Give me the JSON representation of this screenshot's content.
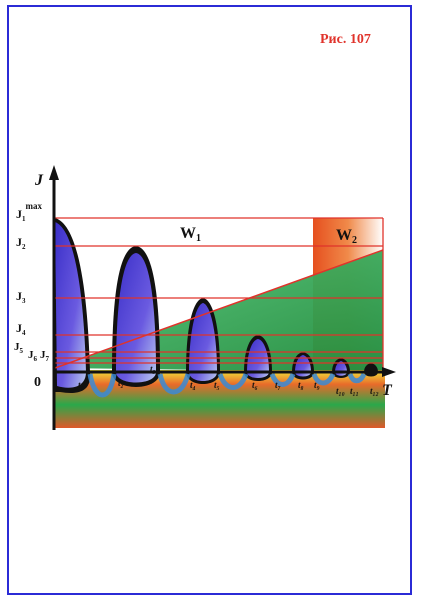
{
  "figure_label": "Рис. 107",
  "axis": {
    "y_label": "J",
    "x_label": "T",
    "origin_label": "0"
  },
  "levels": {
    "j1": "J",
    "j1_sub": "1",
    "j1_sup": "max",
    "j2": "J",
    "j2_sub": "2",
    "j3": "J",
    "j3_sub": "3",
    "j4": "J",
    "j4_sub": "4",
    "j5": "J",
    "j5_sub": "5",
    "j6": "J",
    "j6_sub": "6",
    "j7": "J",
    "j7_sub": "7"
  },
  "regions": {
    "w1": "W",
    "w1_sub": "1",
    "w2": "W",
    "w2_sub": "2"
  },
  "time_marks": [
    "t₁",
    "t₂",
    "t₃",
    "t₄",
    "t₅",
    "t₆",
    "t₇",
    "t₈",
    "t₉",
    "t₁₀",
    "t₁₁",
    "t₁₂"
  ],
  "colors": {
    "frame": "#2b2bd6",
    "label_red": "#e0332b",
    "lobe_blue": "#4a3fd6",
    "level_lines": "#e0332b",
    "green_wedge": "#1f9a3a"
  }
}
